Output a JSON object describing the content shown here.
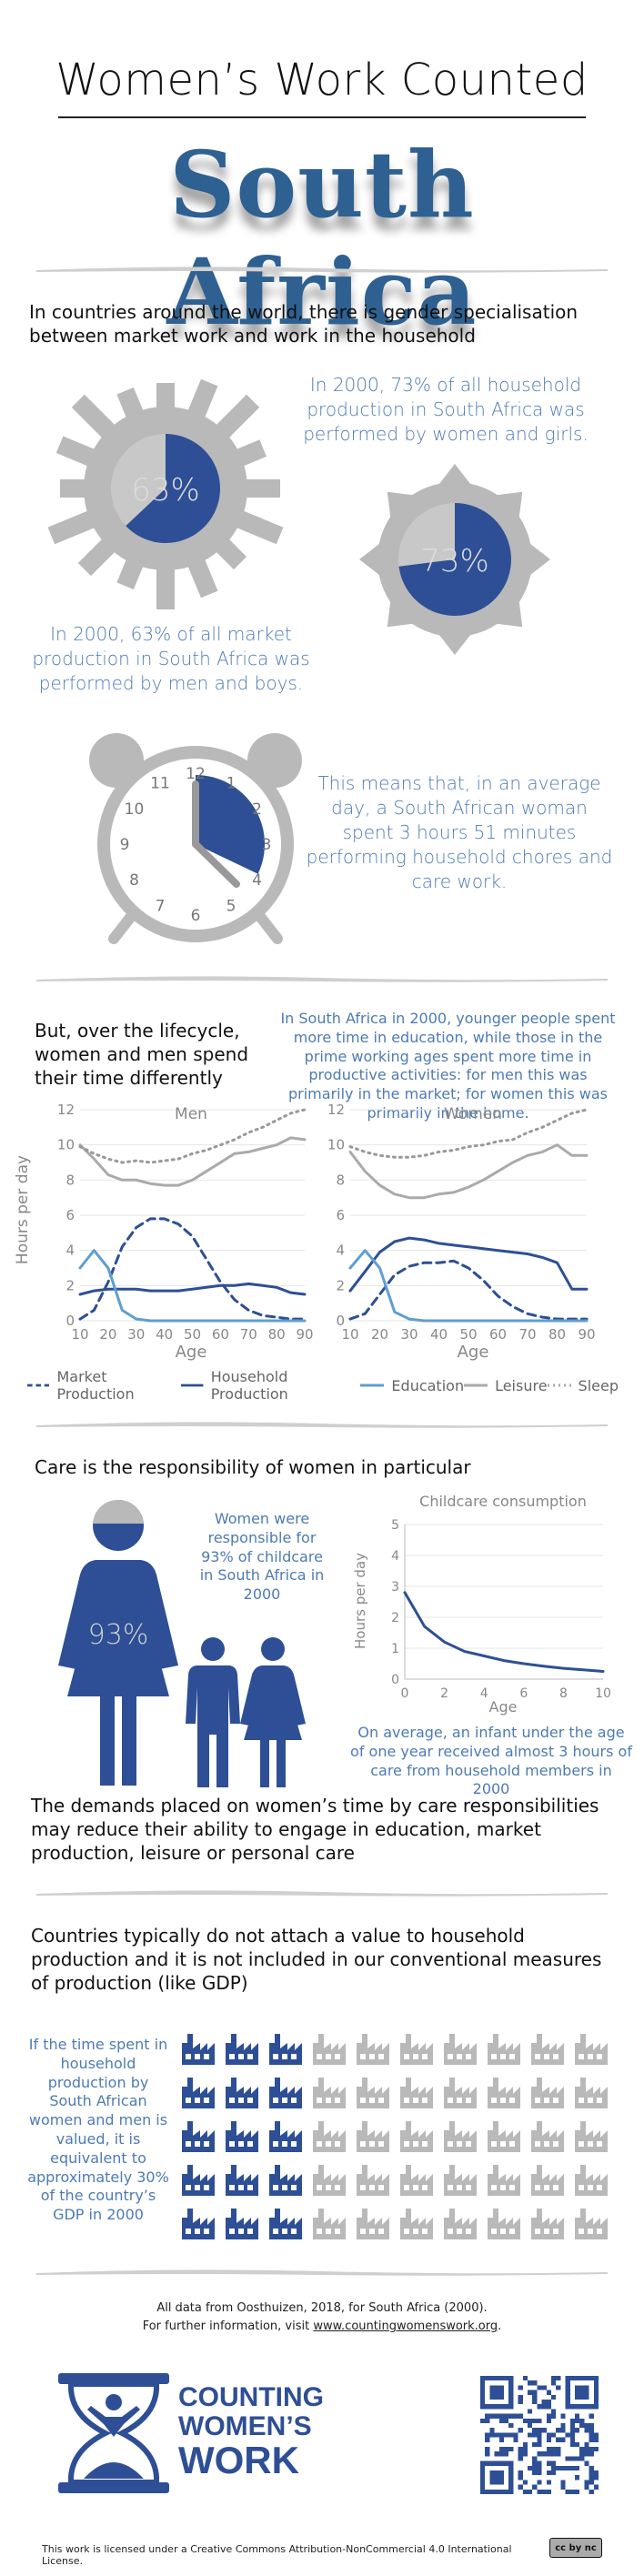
{
  "header": {
    "title": "Women’s Work Counted",
    "country": "South Africa"
  },
  "intro": {
    "text": "In countries around the world, there is gender specialisation between market work and work in the household",
    "household_note": "In 2000, 73% of all household production in South Africa was performed by women and girls.",
    "household_pct_label": "73%",
    "household_pct": 73,
    "market_note": "In 2000, 63% of all market production in South Africa was performed by men and boys.",
    "market_pct_label": "63%",
    "market_pct": 63
  },
  "clock": {
    "numbers": [
      "12",
      "1",
      "2",
      "3",
      "4",
      "5",
      "6",
      "7",
      "8",
      "9",
      "10",
      "11"
    ],
    "note": "This means that, in an average day, a South African woman spent 3 hours 51 minutes performing household chores and care work."
  },
  "lifecycle": {
    "heading": "But, over the lifecycle, women and men spend their time differently",
    "note": "In South Africa in 2000, younger people spent more time in education, while those in the prime working ages spent more time in productive activities: for men this was primarily in the market; for women this was primarily in the home."
  },
  "chart_data": [
    {
      "type": "line",
      "title": "Men",
      "xlabel": "Age",
      "ylabel": "Hours per day",
      "x": [
        10,
        15,
        20,
        25,
        30,
        35,
        40,
        45,
        50,
        55,
        60,
        65,
        70,
        75,
        80,
        85,
        90
      ],
      "xlim": [
        10,
        90
      ],
      "ylim": [
        0,
        12
      ],
      "xticks": [
        "10",
        "20",
        "30",
        "40",
        "50",
        "60",
        "70",
        "80",
        "90"
      ],
      "yticks": [
        "0",
        "2",
        "4",
        "6",
        "8",
        "10",
        "12"
      ],
      "series": [
        {
          "name": "Market Production",
          "values": [
            0.1,
            0.6,
            2.2,
            4.2,
            5.3,
            5.8,
            5.8,
            5.5,
            4.8,
            3.5,
            2.2,
            1.2,
            0.6,
            0.3,
            0.2,
            0.1,
            0.1
          ]
        },
        {
          "name": "Household Production",
          "values": [
            1.5,
            1.7,
            1.8,
            1.8,
            1.8,
            1.7,
            1.7,
            1.7,
            1.8,
            1.9,
            2.0,
            2.0,
            2.1,
            2.0,
            1.9,
            1.6,
            1.5
          ]
        },
        {
          "name": "Education",
          "values": [
            3.0,
            4.0,
            3.0,
            0.6,
            0.1,
            0.0,
            0.0,
            0.0,
            0.0,
            0.0,
            0.0,
            0.0,
            0.0,
            0.0,
            0.0,
            0.0,
            0.0
          ]
        },
        {
          "name": "Leisure",
          "values": [
            10.0,
            9.2,
            8.3,
            8.0,
            8.0,
            7.8,
            7.7,
            7.7,
            8.0,
            8.5,
            9.0,
            9.5,
            9.6,
            9.8,
            10.0,
            10.4,
            10.3
          ]
        },
        {
          "name": "Sleep",
          "values": [
            9.9,
            9.5,
            9.2,
            9.0,
            9.1,
            9.0,
            9.1,
            9.2,
            9.5,
            9.7,
            10.0,
            10.3,
            10.7,
            11.0,
            11.4,
            11.8,
            12.0
          ]
        }
      ]
    },
    {
      "type": "line",
      "title": "Women",
      "xlabel": "Age",
      "ylabel": "",
      "x": [
        10,
        15,
        20,
        25,
        30,
        35,
        40,
        45,
        50,
        55,
        60,
        65,
        70,
        75,
        80,
        85,
        90
      ],
      "xlim": [
        10,
        90
      ],
      "ylim": [
        0,
        12
      ],
      "xticks": [
        "10",
        "20",
        "30",
        "40",
        "50",
        "60",
        "70",
        "80",
        "90"
      ],
      "yticks": [
        "0",
        "2",
        "4",
        "6",
        "8",
        "10",
        "12"
      ],
      "series": [
        {
          "name": "Market Production",
          "values": [
            0.1,
            0.4,
            1.5,
            2.6,
            3.1,
            3.3,
            3.3,
            3.4,
            3.0,
            2.3,
            1.4,
            0.8,
            0.4,
            0.2,
            0.1,
            0.1,
            0.1
          ]
        },
        {
          "name": "Household Production",
          "values": [
            1.7,
            2.8,
            3.9,
            4.5,
            4.7,
            4.6,
            4.4,
            4.3,
            4.2,
            4.1,
            4.0,
            3.9,
            3.8,
            3.6,
            3.3,
            1.8,
            1.8
          ]
        },
        {
          "name": "Education",
          "values": [
            3.0,
            4.0,
            3.0,
            0.5,
            0.1,
            0.0,
            0.0,
            0.0,
            0.0,
            0.0,
            0.0,
            0.0,
            0.0,
            0.0,
            0.0,
            0.0,
            0.0
          ]
        },
        {
          "name": "Leisure",
          "values": [
            9.6,
            8.5,
            7.7,
            7.2,
            7.0,
            7.0,
            7.2,
            7.3,
            7.6,
            8.0,
            8.5,
            9.0,
            9.4,
            9.6,
            10.0,
            9.4,
            9.4
          ]
        },
        {
          "name": "Sleep",
          "values": [
            9.9,
            9.6,
            9.4,
            9.3,
            9.3,
            9.4,
            9.6,
            9.7,
            9.9,
            10.0,
            10.2,
            10.3,
            10.7,
            11.0,
            11.4,
            11.8,
            12.0
          ]
        }
      ]
    },
    {
      "type": "line",
      "title": "Childcare consumption",
      "xlabel": "Age",
      "ylabel": "Hours per day",
      "x": [
        0,
        1,
        2,
        3,
        4,
        5,
        6,
        7,
        8,
        9,
        10
      ],
      "xlim": [
        0,
        10
      ],
      "ylim": [
        0,
        5
      ],
      "xticks": [
        "0",
        "2",
        "4",
        "6",
        "8",
        "10"
      ],
      "yticks": [
        "0",
        "1",
        "2",
        "3",
        "4",
        "5"
      ],
      "series": [
        {
          "name": "Childcare",
          "values": [
            2.8,
            1.7,
            1.2,
            0.9,
            0.75,
            0.6,
            0.5,
            0.42,
            0.35,
            0.3,
            0.25
          ]
        }
      ]
    }
  ],
  "legend": [
    {
      "label": "Market Production",
      "style": "dashed-blue"
    },
    {
      "label": "Household Production",
      "style": "solid-blue"
    },
    {
      "label": "Education",
      "style": "solid-lightblue"
    },
    {
      "label": "Leisure",
      "style": "solid-grey"
    },
    {
      "label": "Sleep",
      "style": "dotted-grey"
    }
  ],
  "care": {
    "heading": "Care is the responsibility of women in particular",
    "note": "Women were responsible for 93% of childcare in South Africa in 2000",
    "pct_label": "93%",
    "pct": 93,
    "infant_note": "On average, an infant under the age of one year received almost 3 hours of care from household members in 2000"
  },
  "demands": {
    "text": "The demands placed on women’s time by care responsibilities may reduce their ability to engage in education, market production, leisure or personal care"
  },
  "gdp": {
    "heading": "Countries typically do not attach a value to household production and it is not included in our conventional measures of production (like GDP)",
    "note": "If the time spent in household production by South African women and men is valued, it is equivalent to approximately 30% of the country’s GDP in 2000",
    "factories_total": 50,
    "factories_blue": 15
  },
  "footer": {
    "source": "All data from Oosthuizen, 2018, for South Africa (2000).",
    "info_prefix": "For further information, visit ",
    "info_link": "www.countingwomenswork.org",
    "info_suffix": ".",
    "logo_line1": "COUNTING",
    "logo_line2": "WOMEN’S",
    "logo_line3": "WORK",
    "license": "This work is licensed under a Creative Commons Attribution-NonCommercial 4.0 International License.",
    "cc_badge": "cc by nc"
  },
  "colors": {
    "accent": "#2e4f95",
    "text_blue": "#4d7bb3",
    "grey": "#b4b4b4",
    "title_blue": "#2e6191"
  }
}
